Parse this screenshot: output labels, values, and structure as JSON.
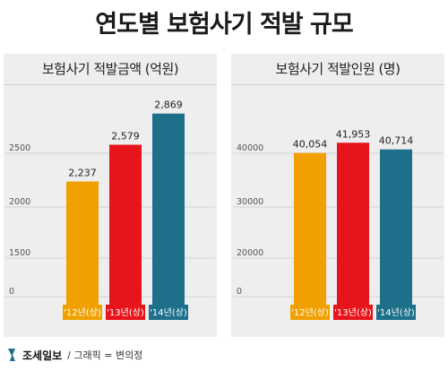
{
  "title": "연도별 보험사기 적발 규모",
  "chart_data": [
    {
      "type": "bar",
      "title": "보험사기 적발금액 (억원)",
      "categories": [
        "'12년(상)",
        "'13년(상)",
        "'14년(상)"
      ],
      "values": [
        2237,
        2579,
        2869
      ],
      "value_labels": [
        "2,237",
        "2,579",
        "2,869"
      ],
      "yticks": [
        0,
        1500,
        2000,
        2500
      ],
      "ytick_labels": [
        "0",
        "1500",
        "2000",
        "2500"
      ],
      "colors": [
        "#f0a000",
        "#e8141b",
        "#1d6f8a"
      ],
      "grid": true
    },
    {
      "type": "bar",
      "title": "보험사기 적발인원 (명)",
      "categories": [
        "'12년(상)",
        "'13년(상)",
        "'14년(상)"
      ],
      "values": [
        40054,
        41953,
        40714
      ],
      "value_labels": [
        "40,054",
        "41,953",
        "40,714"
      ],
      "yticks": [
        0,
        20000,
        30000,
        40000
      ],
      "ytick_labels": [
        "0",
        "20000",
        "30000",
        "40000"
      ],
      "colors": [
        "#f0a000",
        "#e8141b",
        "#1d6f8a"
      ],
      "grid": true
    }
  ],
  "footer": {
    "brand": "조세일보",
    "credit": "/ 그래픽 = 변의정"
  }
}
